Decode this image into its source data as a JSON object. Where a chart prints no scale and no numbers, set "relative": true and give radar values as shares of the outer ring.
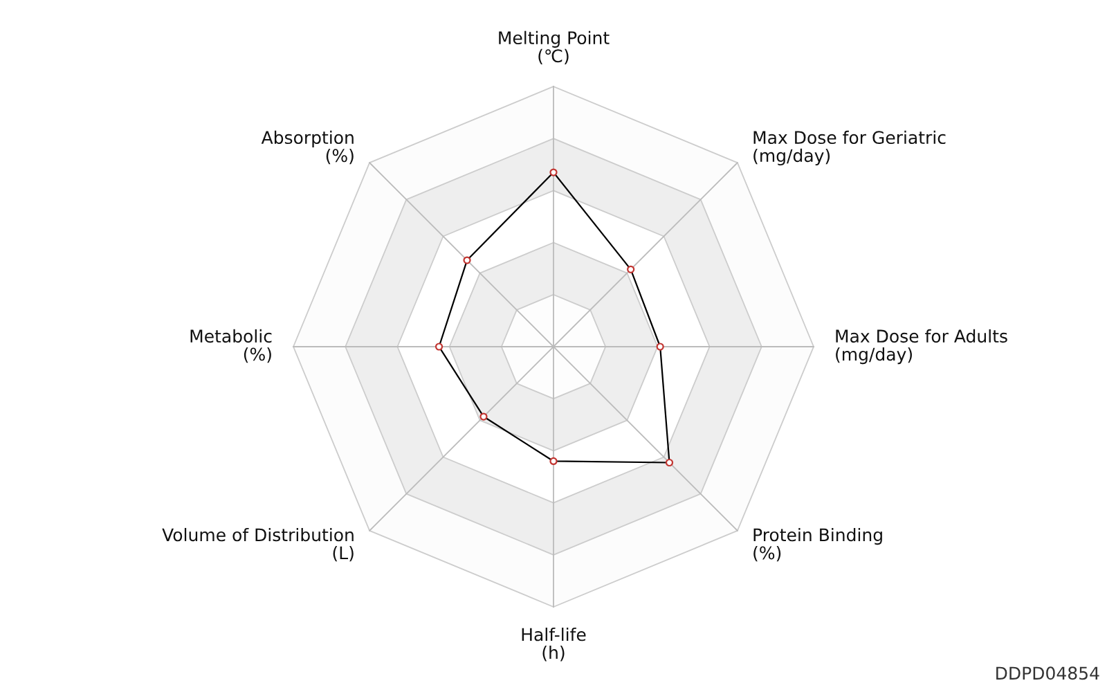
{
  "chart_data": {
    "type": "radar",
    "relative": true,
    "categories": [
      "Melting Point\n(℃)",
      "Max Dose for Geriatric\n(mg/day)",
      "Max Dose for Adults\n(mg/day)",
      "Protein Binding\n(%)",
      "Half-life\n(h)",
      "Volume of Distribution\n(L)",
      "Metabolic\n(%)",
      "Absorption\n(%)"
    ],
    "series": [
      {
        "color": "#000000",
        "colors": [
          "#c23531",
          "#c23531",
          "#c23531",
          "#c23531",
          "#c23531",
          "#c23531",
          "#c23531",
          "#c23531"
        ],
        "values": [
          0.67,
          0.42,
          0.41,
          0.63,
          0.44,
          0.38,
          0.44,
          0.47
        ]
      }
    ],
    "marker": "circle",
    "line_style": "solid",
    "grid": true,
    "annotations": [
      "DDPD04854"
    ]
  }
}
